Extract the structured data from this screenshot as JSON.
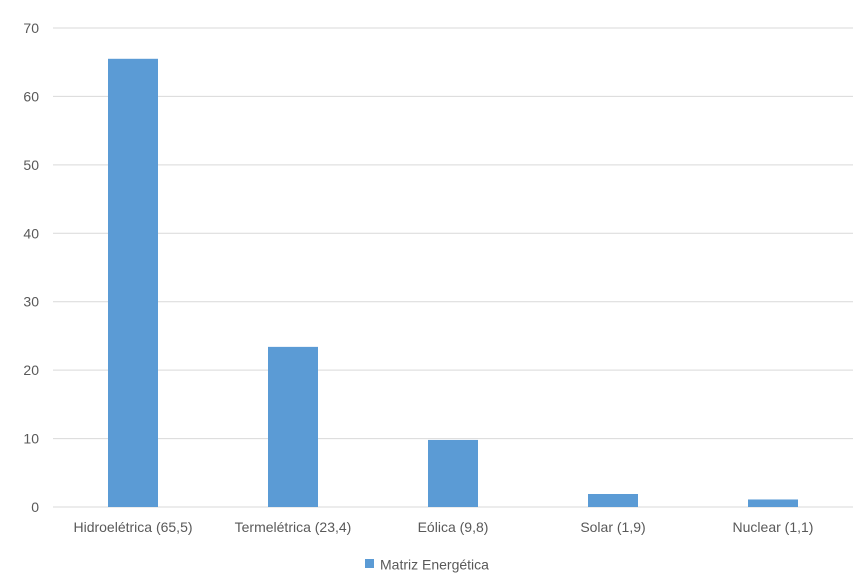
{
  "chart_data": {
    "type": "bar",
    "categories": [
      "Hidroelétrica (65,5)",
      "Termelétrica (23,4)",
      "Eólica (9,8)",
      "Solar (1,9)",
      "Nuclear (1,1)"
    ],
    "series": [
      {
        "name": "Matriz Energética",
        "values": [
          65.5,
          23.4,
          9.8,
          1.9,
          1.1
        ],
        "color": "#5b9bd5"
      }
    ],
    "ylim": [
      0,
      70
    ],
    "yticks": [
      0,
      10,
      20,
      30,
      40,
      50,
      60,
      70
    ],
    "grid": true,
    "legend": "bottom",
    "colors": {
      "bar": "#5b9bd5",
      "grid": "#d9d9d9",
      "text": "#595959"
    }
  }
}
